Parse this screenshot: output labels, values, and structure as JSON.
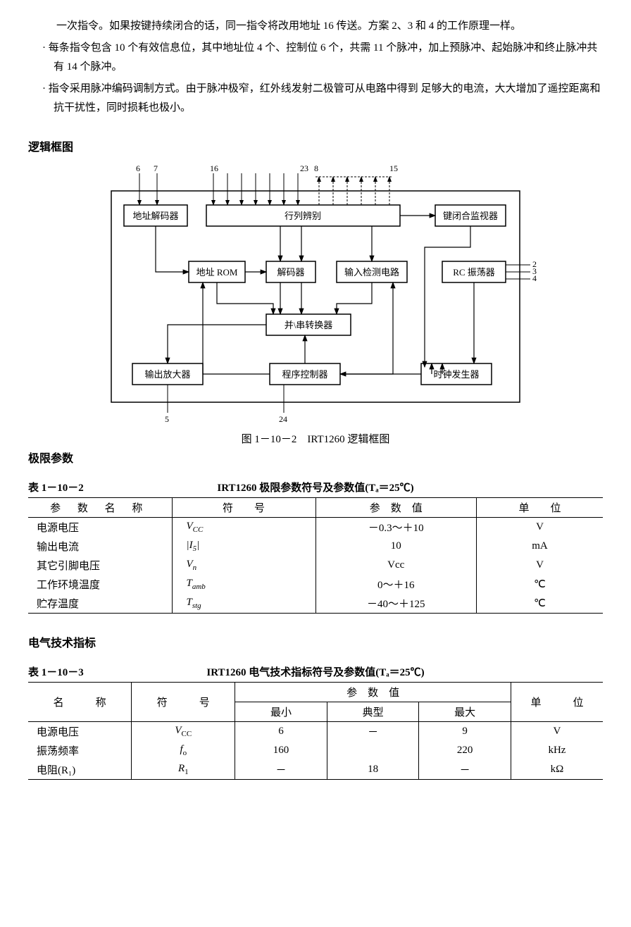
{
  "paragraphs": {
    "p1": "一次指令。如果按键持续闭合的话，同一指令将改用地址 16 传送。方案 2、3 和 4 的工作原理一样。",
    "b1": "· 每条指令包含 10 个有效信息位，其中地址位 4 个、控制位 6 个，共需 11 个脉冲，加上预脉冲、起始脉冲和终止脉冲共有 14 个脉冲。",
    "b2": "· 指令采用脉冲编码调制方式。由于脉冲极窄，红外线发射二极管可从电路中得到 足够大的电流，大大增加了遥控距离和抗干扰性，同时损耗也极小。"
  },
  "section_logic": "逻辑框图",
  "diagram": {
    "pins_top": [
      "6",
      "7",
      "16",
      "23",
      "8",
      "15"
    ],
    "pins_right": [
      "2",
      "3",
      "4"
    ],
    "pins_bottom": [
      "5",
      "24"
    ],
    "blocks": {
      "addr_dec": "地址解码器",
      "row_col": "行列辨别",
      "key_mon": "键闭合监视器",
      "addr_rom": "地址 ROM",
      "decoder": "解码器",
      "input_det": "输入检测电路",
      "rc_osc": "RC 振荡器",
      "ps_conv": "并\\串转换器",
      "out_amp": "输出放大器",
      "prog_ctrl": "程序控制器",
      "clk_gen": "时钟发生器"
    },
    "caption": "图 1－10－2　IRT1260 逻辑框图"
  },
  "section_limit": "极限参数",
  "table1": {
    "num": "表 1－10－2",
    "title": "IRT1260 极限参数符号及参数值(Tₐ＝25℃)",
    "headers": [
      "参 数 名 称",
      "符　　号",
      "参　数　值",
      "单　　位"
    ],
    "rows": [
      {
        "name": "电源电压",
        "sym": "V",
        "sub": "CC",
        "val": "－0.3～＋10",
        "unit": "V"
      },
      {
        "name": "输出电流",
        "sym": "|I",
        "sub": "5",
        "symclose": "|",
        "val": "10",
        "unit": "mA"
      },
      {
        "name": "其它引脚电压",
        "sym": "V",
        "sub": "n",
        "val": "Vcc",
        "unit": "V"
      },
      {
        "name": "工作环境温度",
        "sym": "T",
        "sub": "amb",
        "val": "0～＋16",
        "unit": "℃"
      },
      {
        "name": "贮存温度",
        "sym": "T",
        "sub": "stg",
        "val": "－40～＋125",
        "unit": "℃"
      }
    ]
  },
  "section_elec": "电气技术指标",
  "table2": {
    "num": "表 1－10－3",
    "title": "IRT1260 电气技术指标符号及参数值(Tₐ＝25℃)",
    "headers": {
      "name": "名　　　称",
      "sym": "符　　　号",
      "val": "参　数　值",
      "unit": "单　　　位",
      "min": "最小",
      "typ": "典型",
      "max": "最大"
    },
    "rows": [
      {
        "name": "电源电压",
        "sym": "V",
        "sub": "CC",
        "min": "6",
        "typ": "－",
        "max": "9",
        "unit": "V"
      },
      {
        "name": "振荡频率",
        "sym": "f",
        "sub": "o",
        "min": "160",
        "typ": "",
        "max": "220",
        "unit": "kHz"
      },
      {
        "name": "电阻(R₁)",
        "sym": "R",
        "sub": "1",
        "min": "－",
        "typ": "18",
        "max": "－",
        "unit": "kΩ"
      }
    ]
  }
}
